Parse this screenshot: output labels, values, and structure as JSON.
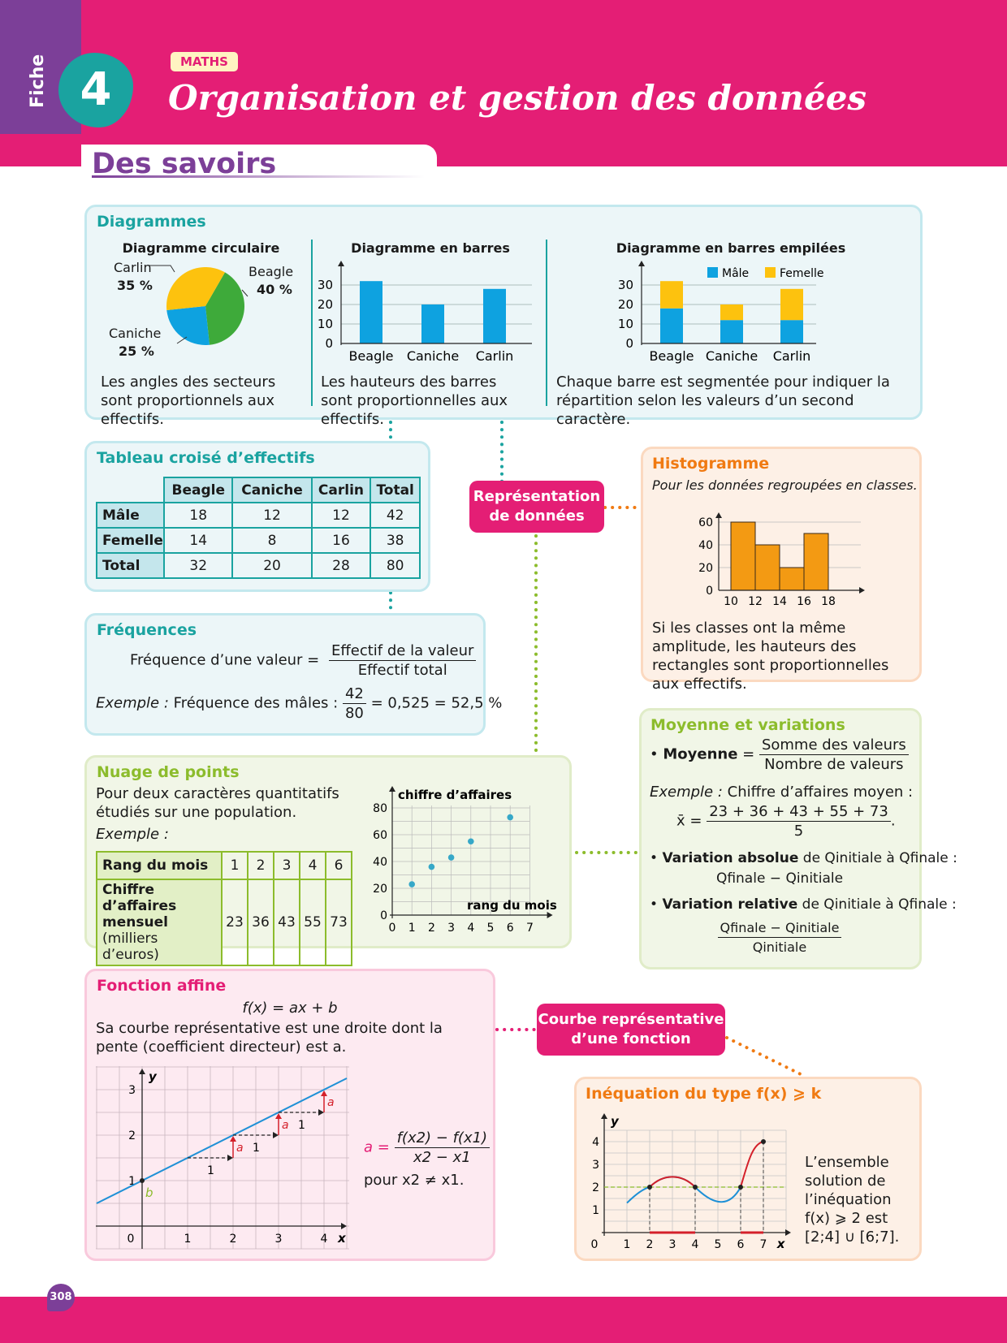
{
  "header": {
    "fiche_label": "Fiche",
    "fiche_number": "4",
    "subject": "MATHS",
    "title": "Organisation et gestion des données"
  },
  "section_title": "Des savoirs",
  "colors": {
    "pink": "#e41e75",
    "teal": "#1aa3a0",
    "purple": "#7c3f98",
    "orange": "#f07a12",
    "green": "#8cbc2c",
    "blue": "#0ea2e0",
    "yellow": "#fdc20e",
    "pie_green": "#3eaa3a"
  },
  "diagrammes": {
    "title": "Diagrammes",
    "pie": {
      "title": "Diagramme circulaire",
      "slices": [
        {
          "label": "Beagle",
          "pct_label": "40 %",
          "value": 40
        },
        {
          "label": "Caniche",
          "pct_label": "25 %",
          "value": 25
        },
        {
          "label": "Carlin",
          "pct_label": "35 %",
          "value": 35
        }
      ],
      "caption": "Les angles des secteurs sont proportionnels aux effectifs."
    },
    "bars": {
      "title": "Diagramme en barres",
      "categories": [
        "Beagle",
        "Caniche",
        "Carlin"
      ],
      "values": [
        32,
        20,
        28
      ],
      "ticks": [
        "0",
        "10",
        "20",
        "30"
      ],
      "caption": "Les hauteurs des barres sont proportionnelles aux effectifs."
    },
    "stacked": {
      "title": "Diagramme en barres empilées",
      "categories": [
        "Beagle",
        "Caniche",
        "Carlin"
      ],
      "series": [
        {
          "name": "Mâle",
          "values": [
            18,
            12,
            12
          ]
        },
        {
          "name": "Femelle",
          "values": [
            14,
            8,
            16
          ]
        }
      ],
      "ticks": [
        "0",
        "10",
        "20",
        "30"
      ],
      "caption": "Chaque barre est segmentée pour indiquer la répartition selon les valeurs d’un second caractère."
    }
  },
  "tableau": {
    "title": "Tableau croisé d’effectifs",
    "headers": [
      "Beagle",
      "Caniche",
      "Carlin",
      "Total"
    ],
    "rows": [
      {
        "label": "Mâle",
        "cells": [
          "18",
          "12",
          "12",
          "42"
        ]
      },
      {
        "label": "Femelle",
        "cells": [
          "14",
          "8",
          "16",
          "38"
        ]
      },
      {
        "label": "Total",
        "cells": [
          "32",
          "20",
          "28",
          "80"
        ]
      }
    ]
  },
  "frequences": {
    "title": "Fréquences",
    "def_label": "Fréquence d’une valeur =",
    "num": "Effectif de la valeur",
    "den": "Effectif total",
    "ex_label": "Exemple :",
    "ex_text": "Fréquence des mâles :",
    "ex_num": "42",
    "ex_den": "80",
    "ex_result": "= 0,525 = 52,5 %"
  },
  "connectors": {
    "representation": "Représentation de données",
    "courbe": "Courbe représentative d’une fonction"
  },
  "histogramme": {
    "title": "Histogramme",
    "subtitle": "Pour les données regroupées en classes.",
    "x_ticks": [
      "10",
      "12",
      "14",
      "16",
      "18"
    ],
    "y_ticks": [
      "0",
      "20",
      "40",
      "60"
    ],
    "bins": [
      {
        "from": 10,
        "to": 12,
        "value": 60
      },
      {
        "from": 12,
        "to": 14,
        "value": 40
      },
      {
        "from": 14,
        "to": 16,
        "value": 20
      },
      {
        "from": 16,
        "to": 18,
        "value": 50
      }
    ],
    "caption": "Si les classes ont la même amplitude, les hauteurs des rectangles sont proportionnelles aux effectifs."
  },
  "moyenne": {
    "title": "Moyenne et variations",
    "moy_label": "Moyenne",
    "moy_num": "Somme des valeurs",
    "moy_den": "Nombre de valeurs",
    "ex_label": "Exemple :",
    "ex_text": "Chiffre d’affaires moyen :",
    "ex_xbar": "x̄ =",
    "ex_num": "23 + 36 + 43 + 55 + 73",
    "ex_den": "5",
    "va_label": "Variation absolue",
    "va_text": "de Qinitiale à Qfinale :",
    "va_formula": "Qfinale − Qinitiale",
    "vr_label": "Variation relative",
    "vr_text": "de Qinitiale à Qfinale :",
    "vr_num": "Qfinale − Qinitiale",
    "vr_den": "Qinitiale"
  },
  "nuage": {
    "title": "Nuage de points",
    "intro": "Pour deux caractères quantitatifs étudiés sur une population.",
    "ex_label": "Exemple :",
    "row1_label": "Rang du mois",
    "row2_label": "Chiffre d’affaires mensuel",
    "row2_unit": "(milliers d’euros)",
    "ranks": [
      "1",
      "2",
      "3",
      "4",
      "6"
    ],
    "ca": [
      "23",
      "36",
      "43",
      "55",
      "73"
    ],
    "y_axis_label": "chiffre d’affaires",
    "x_axis_label": "rang du mois",
    "x_ticks": [
      "0",
      "1",
      "2",
      "3",
      "4",
      "5",
      "6",
      "7"
    ],
    "y_ticks": [
      "0",
      "20",
      "40",
      "60",
      "80"
    ]
  },
  "fonction": {
    "title": "Fonction affine",
    "formula": "f(x) = ax + b",
    "text": "Sa courbe représentative est une droite dont la pente (coefficient directeur) est a.",
    "slope_num": "f(x2) − f(x1)",
    "slope_den": "x2 − x1",
    "a_eq": "a =",
    "condition": "pour x2 ≠ x1.",
    "x_ticks": [
      "0",
      "1",
      "2",
      "3",
      "4"
    ],
    "y_ticks": [
      "1",
      "2",
      "3"
    ],
    "labels": {
      "a": "a",
      "b": "b",
      "one": "1",
      "x": "x",
      "y": "y"
    }
  },
  "inequation": {
    "title": "Inéquation du type f(x) ⩾ k",
    "text": "L’ensemble solution de l’inéquation f(x) ⩾ 2 est [2;4] ∪ [6;7].",
    "x_ticks": [
      "0",
      "1",
      "2",
      "3",
      "4",
      "5",
      "6",
      "7"
    ],
    "y_ticks": [
      "1",
      "2",
      "3",
      "4"
    ]
  },
  "page_number": "308"
}
